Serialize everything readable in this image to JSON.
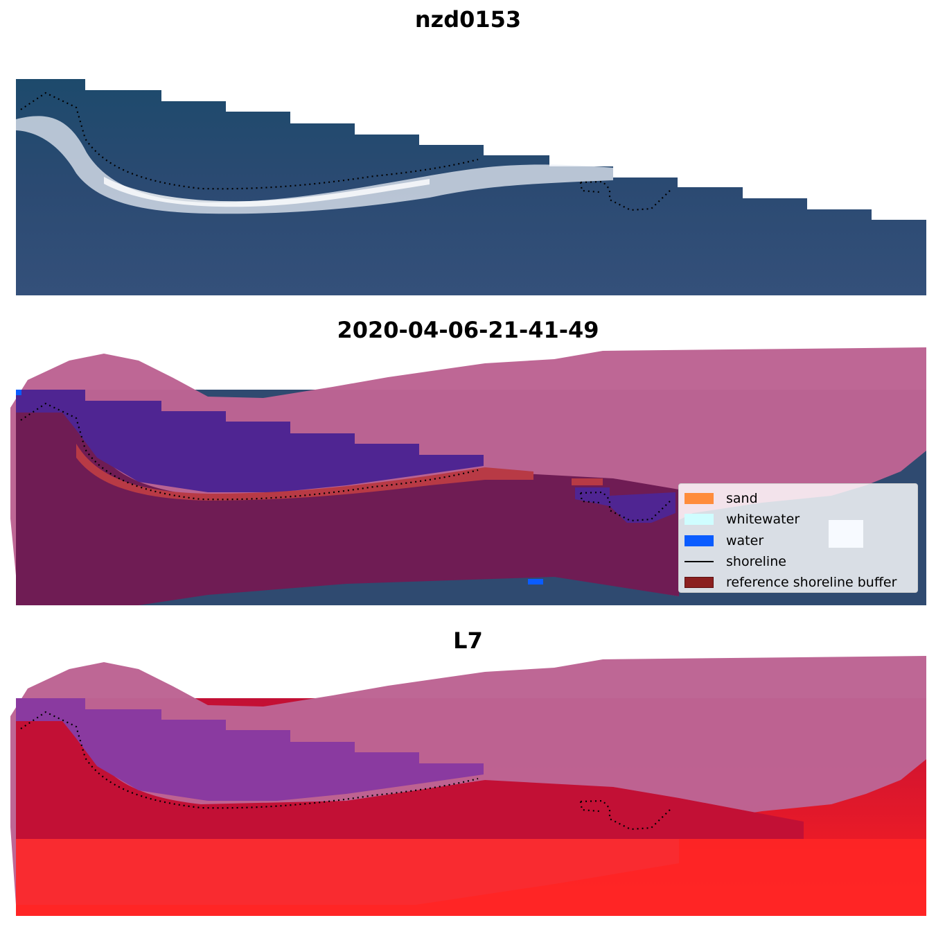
{
  "panels": [
    {
      "title": "nzd0153"
    },
    {
      "title": "2020-04-06-21-41-49"
    },
    {
      "title": "L7"
    }
  ],
  "legend": {
    "items": [
      {
        "label": "sand",
        "color": "#ff8c3c"
      },
      {
        "label": "whitewater",
        "color": "#cffdff"
      },
      {
        "label": "water",
        "color": "#0a5cff"
      },
      {
        "label": "shoreline",
        "color": "#000000"
      },
      {
        "label": "reference shoreline buffer",
        "color": "#8b2020"
      }
    ]
  },
  "colors": {
    "imagery_water": "#2d4a6e",
    "roi_overlay": "#bd6493",
    "water_class": "#4f2592",
    "shoreline_buffer": "#6f1c54",
    "sand_strip": "#b83a45",
    "l7_land": "#c21035",
    "l7_water": "#8a3aa0",
    "bright_red": "#ff2020"
  }
}
